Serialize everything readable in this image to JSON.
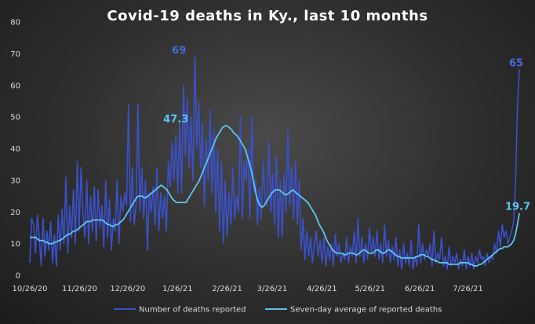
{
  "chart_data": {
    "type": "line",
    "title": "Covid-19  deaths  in  Ky.,  last  10  months",
    "xlabel": "",
    "ylabel": "",
    "ylim": [
      0,
      80
    ],
    "yticks": [
      0,
      10,
      20,
      30,
      40,
      50,
      60,
      70,
      80
    ],
    "x_start": "10/26/20",
    "x_end": "8/27/21",
    "xticks": [
      "10/26/20",
      "11/26/20",
      "12/26/20",
      "1/26/21",
      "2/26/21",
      "3/26/21",
      "4/26/21",
      "5/26/21",
      "6/26/21",
      "7/26/21"
    ],
    "grid": false,
    "legend_position": "bottom",
    "series": [
      {
        "name": "Number of deaths reported",
        "color": "#3b50c8",
        "values": [
          4,
          18,
          16,
          7,
          19,
          12,
          3,
          18,
          6,
          14,
          8,
          17,
          4,
          13,
          3,
          19,
          8,
          21,
          10,
          31,
          7,
          22,
          12,
          27,
          10,
          36,
          14,
          34,
          20,
          12,
          30,
          10,
          25,
          14,
          28,
          11,
          27,
          15,
          22,
          9,
          30,
          12,
          24,
          8,
          18,
          14,
          30,
          10,
          25,
          20,
          26,
          22,
          54,
          17,
          34,
          16,
          22,
          54,
          20,
          34,
          18,
          30,
          8,
          26,
          20,
          28,
          16,
          34,
          14,
          26,
          18,
          25,
          14,
          36,
          28,
          42,
          30,
          44,
          26,
          48,
          26,
          60,
          38,
          56,
          34,
          50,
          30,
          69,
          40,
          55,
          34,
          48,
          22,
          43,
          30,
          52,
          26,
          46,
          20,
          40,
          14,
          36,
          10,
          30,
          12,
          26,
          16,
          34,
          18,
          25,
          20,
          50,
          18,
          36,
          30,
          40,
          18,
          50,
          26,
          30,
          16,
          28,
          18,
          36,
          24,
          22,
          42,
          20,
          32,
          16,
          38,
          12,
          30,
          12,
          32,
          20,
          46,
          22,
          34,
          18,
          36,
          16,
          30,
          8,
          18,
          5,
          14,
          6,
          12,
          4,
          10,
          14,
          6,
          11,
          4,
          12,
          3,
          9,
          5,
          10,
          3,
          13,
          6,
          10,
          4,
          7,
          5,
          12,
          4,
          9,
          6,
          14,
          4,
          18,
          6,
          12,
          4,
          10,
          5,
          15,
          7,
          12,
          6,
          14,
          5,
          10,
          4,
          16,
          6,
          11,
          4,
          9,
          5,
          12,
          3,
          8,
          2,
          10,
          4,
          7,
          3,
          11,
          2,
          6,
          3,
          16,
          4,
          10,
          5,
          8,
          6,
          10,
          3,
          14,
          4,
          7,
          5,
          12,
          3,
          6,
          2,
          9,
          3,
          6,
          4,
          7,
          2,
          5,
          3,
          8,
          2,
          6,
          3,
          7,
          2,
          6,
          4,
          8,
          5,
          6,
          3,
          7,
          4,
          6,
          5,
          10,
          7,
          14,
          9,
          16,
          12,
          14,
          10,
          12,
          14,
          17,
          29,
          53,
          65
        ],
        "annotations": [
          {
            "x": "1/26/21",
            "value": 69
          },
          {
            "x": "8/27/21",
            "value": 65
          }
        ]
      },
      {
        "name": "Seven-day average of reported deaths",
        "color": "#5fc3ef",
        "values": [
          12,
          12,
          12,
          12,
          11.5,
          11,
          11,
          11,
          10.5,
          10.5,
          10,
          10,
          10,
          10.5,
          10.5,
          11,
          11,
          11.5,
          12,
          12.5,
          13,
          13,
          13.5,
          14,
          14,
          14.5,
          15,
          15.5,
          16,
          16.5,
          17,
          17,
          17,
          17.5,
          17.5,
          17.5,
          17.5,
          17.5,
          17.5,
          17,
          16.5,
          16,
          16,
          15.5,
          15.5,
          16,
          16,
          16.5,
          17,
          17.5,
          18.5,
          19.5,
          20.5,
          21.5,
          22.5,
          23.5,
          24.5,
          25,
          25,
          25,
          24.5,
          24.5,
          25,
          25.5,
          26,
          26.5,
          27,
          27.5,
          28,
          28.5,
          28,
          27.5,
          27,
          26,
          25,
          24,
          23.5,
          23,
          23,
          23,
          23,
          23,
          23,
          24,
          25,
          26,
          27,
          28,
          29,
          30,
          31.5,
          33,
          34.5,
          36,
          37.5,
          39,
          40.5,
          42,
          43.5,
          44.5,
          45.5,
          46.5,
          47,
          47.3,
          47,
          46.5,
          46,
          45,
          44.5,
          44,
          43,
          42,
          41,
          40,
          38,
          36,
          34,
          31,
          28,
          25,
          23,
          22,
          21.5,
          22,
          23,
          24,
          25,
          26,
          26.5,
          27,
          27,
          27,
          26.5,
          26,
          25.5,
          25.5,
          26,
          26.5,
          27,
          26.5,
          26,
          25.5,
          25,
          24.5,
          24,
          23.5,
          23,
          22,
          21,
          20,
          19,
          17.5,
          16,
          15,
          14,
          12.5,
          11,
          10,
          9,
          8,
          7.5,
          7,
          7,
          7,
          7,
          6.5,
          6.5,
          7,
          7,
          7,
          7,
          6.5,
          6.5,
          7,
          7.5,
          8,
          8,
          7.5,
          7,
          7,
          7,
          7.5,
          8,
          8,
          7.5,
          7,
          7,
          7.5,
          8,
          8,
          7.5,
          7,
          6.5,
          6,
          6,
          5.5,
          5.5,
          5.5,
          5.5,
          5.5,
          5.5,
          5.5,
          5.5,
          6,
          6,
          6.5,
          6.5,
          6.5,
          6,
          6,
          5.5,
          5,
          5,
          4.5,
          4.5,
          4,
          4,
          4,
          4,
          4,
          3.5,
          3.5,
          3.5,
          3.5,
          3.5,
          3.5,
          4,
          4,
          4,
          4,
          4,
          3.5,
          3.5,
          3,
          3,
          3,
          3.5,
          3.5,
          4,
          4.5,
          5,
          5.5,
          6,
          6.5,
          7,
          7.5,
          8,
          8.5,
          8.5,
          9,
          9,
          9,
          9.5,
          10,
          11,
          13,
          16,
          19.7
        ],
        "annotations": [
          {
            "x": "1/26/21",
            "value": 47.3
          },
          {
            "x": "8/27/21",
            "value": 19.7
          }
        ]
      }
    ]
  }
}
